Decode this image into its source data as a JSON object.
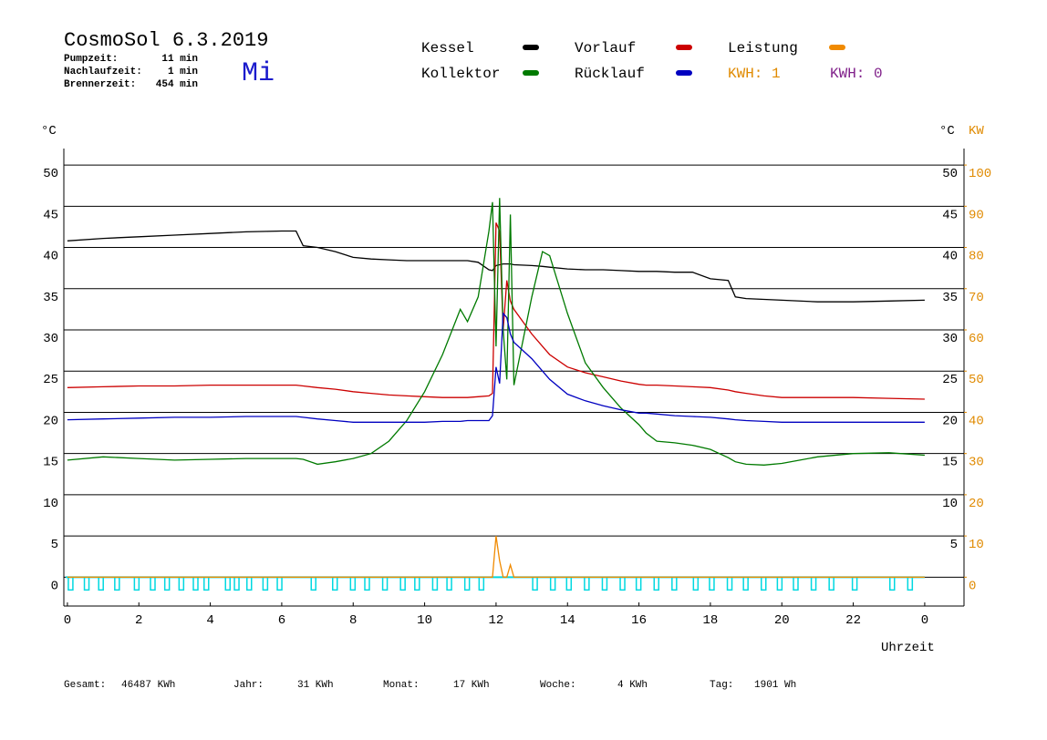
{
  "chart_data": {
    "type": "line",
    "title": "CosmoSol 6.3.2019",
    "day": "Mi",
    "stats": [
      {
        "label": "Pumpzeit:",
        "value": "11 min"
      },
      {
        "label": "Nachlaufzeit:",
        "value": "1 min"
      },
      {
        "label": "Brennerzeit:",
        "value": "454 min"
      }
    ],
    "kwh_labels": [
      {
        "text": "KWH: 1",
        "color": "#e08a00"
      },
      {
        "text": "KWH: 0",
        "color": "#80208a"
      }
    ],
    "ylabel": "°C",
    "ylabel_right": "°C",
    "y2label": "KW",
    "xlabel": "Uhrzeit",
    "xlim": [
      -0.1,
      25.1
    ],
    "xticks": [
      0,
      2,
      4,
      6,
      8,
      10,
      12,
      14,
      16,
      18,
      20,
      22,
      {
        "value": 24,
        "label": "0"
      }
    ],
    "ylim": [
      -3.5,
      52
    ],
    "yticks": [
      0,
      5,
      10,
      15,
      20,
      25,
      30,
      35,
      40,
      45,
      50
    ],
    "yticks_right": [
      5,
      10,
      15,
      20,
      25,
      30,
      35,
      40,
      45,
      50
    ],
    "y2lim": [
      -7,
      104
    ],
    "y2ticks": [
      0,
      10,
      20,
      30,
      40,
      50,
      60,
      70,
      80,
      90,
      100
    ],
    "grid": true,
    "x": [
      0,
      1,
      2,
      3,
      4,
      5,
      6,
      6.4,
      6.6,
      7,
      7.5,
      8,
      8.5,
      9,
      9.5,
      10,
      10.5,
      11,
      11.2,
      11.5,
      11.8,
      11.9,
      12,
      12.1,
      12.2,
      12.3,
      12.4,
      12.5,
      13,
      13.3,
      13.5,
      14,
      14.5,
      15,
      15.5,
      16,
      16.2,
      16.5,
      17,
      17.5,
      18,
      18.5,
      18.7,
      19,
      19.5,
      20,
      21,
      22,
      23,
      24
    ],
    "series": [
      {
        "name": "Kessel",
        "color": "#000000",
        "values": [
          40.8,
          41.1,
          41.3,
          41.5,
          41.7,
          41.9,
          42.0,
          42.0,
          40.2,
          40.0,
          39.5,
          38.8,
          38.6,
          38.5,
          38.4,
          38.4,
          38.4,
          38.4,
          38.4,
          38.2,
          37.3,
          37.2,
          37.8,
          37.9,
          38.0,
          38.0,
          38.0,
          37.9,
          37.8,
          37.7,
          37.6,
          37.4,
          37.3,
          37.3,
          37.2,
          37.1,
          37.1,
          37.1,
          37.0,
          37.0,
          36.2,
          36.0,
          34.0,
          33.8,
          33.7,
          33.6,
          33.4,
          33.4,
          33.5,
          33.6
        ]
      },
      {
        "name": "Vorlauf",
        "color": "#cc0000",
        "values": [
          23.0,
          23.1,
          23.2,
          23.2,
          23.3,
          23.3,
          23.3,
          23.3,
          23.2,
          23.0,
          22.8,
          22.5,
          22.3,
          22.1,
          22.0,
          21.9,
          21.8,
          21.8,
          21.8,
          21.9,
          22.0,
          22.3,
          43.0,
          42.0,
          30.0,
          36.0,
          33.5,
          32.5,
          29.5,
          28.0,
          27.0,
          25.5,
          24.8,
          24.3,
          23.8,
          23.4,
          23.3,
          23.3,
          23.2,
          23.1,
          23.0,
          22.7,
          22.5,
          22.3,
          22.0,
          21.8,
          21.8,
          21.8,
          21.7,
          21.6
        ]
      },
      {
        "name": "Leistung",
        "color": "#f08a00",
        "axis": "y2",
        "values": [
          0,
          0,
          0,
          0,
          0,
          0,
          0,
          0,
          0,
          0,
          0,
          0,
          0,
          0,
          0,
          0,
          0,
          0,
          0,
          0,
          0,
          0,
          10,
          4,
          0,
          0,
          3,
          0,
          0,
          0,
          0,
          0,
          0,
          0,
          0,
          0,
          0,
          0,
          0,
          0,
          0,
          0,
          0,
          0,
          0,
          0,
          0,
          0,
          0,
          0
        ]
      },
      {
        "name": "Kollektor",
        "color": "#007a00",
        "values": [
          14.2,
          14.6,
          14.4,
          14.2,
          14.3,
          14.4,
          14.4,
          14.4,
          14.3,
          13.7,
          14.0,
          14.4,
          15.0,
          16.5,
          19.0,
          22.5,
          27.0,
          32.5,
          31.0,
          34.0,
          42.0,
          45.5,
          28.0,
          46.0,
          30.0,
          24.0,
          44.0,
          23.3,
          34.0,
          39.5,
          39.0,
          32.0,
          26.0,
          23.0,
          20.5,
          18.5,
          17.5,
          16.5,
          16.3,
          16.0,
          15.5,
          14.5,
          14.0,
          13.7,
          13.6,
          13.8,
          14.6,
          15.0,
          15.1,
          14.8
        ]
      },
      {
        "name": "Rücklauf",
        "color": "#0000c0",
        "values": [
          19.1,
          19.2,
          19.3,
          19.4,
          19.4,
          19.5,
          19.5,
          19.5,
          19.4,
          19.2,
          19.0,
          18.8,
          18.8,
          18.8,
          18.8,
          18.8,
          18.9,
          18.9,
          19.0,
          19.0,
          19.0,
          19.6,
          25.5,
          23.5,
          32.0,
          31.5,
          29.5,
          28.5,
          26.5,
          25.0,
          24.0,
          22.2,
          21.4,
          20.8,
          20.3,
          19.9,
          19.9,
          19.8,
          19.6,
          19.5,
          19.4,
          19.2,
          19.1,
          19.0,
          18.9,
          18.8,
          18.8,
          18.8,
          18.8,
          18.8
        ]
      }
    ],
    "pump_color": "#00d8e0",
    "pump_pulses": [
      0,
      0.45,
      0.85,
      1.3,
      1.85,
      2.3,
      2.7,
      3.1,
      3.5,
      3.8,
      4.4,
      4.65,
      5.0,
      5.45,
      5.85,
      6.8,
      7.4,
      7.9,
      8.3,
      8.8,
      9.3,
      9.7,
      10.2,
      10.6,
      11.1,
      11.5,
      13.0,
      13.5,
      13.95,
      14.45,
      14.95,
      15.45,
      15.9,
      16.4,
      16.9,
      17.5,
      17.95,
      18.45,
      18.9,
      19.4,
      19.85,
      20.3,
      20.8,
      21.3,
      21.95,
      23.0,
      23.5
    ],
    "footer": [
      {
        "label": "Gesamt:",
        "value": "46487 KWh"
      },
      {
        "label": "Jahr:",
        "value": "31 KWh"
      },
      {
        "label": "Monat:",
        "value": "17 KWh"
      },
      {
        "label": "Woche:",
        "value": "4 KWh"
      },
      {
        "label": "Tag:",
        "value": "1901 Wh"
      }
    ]
  }
}
